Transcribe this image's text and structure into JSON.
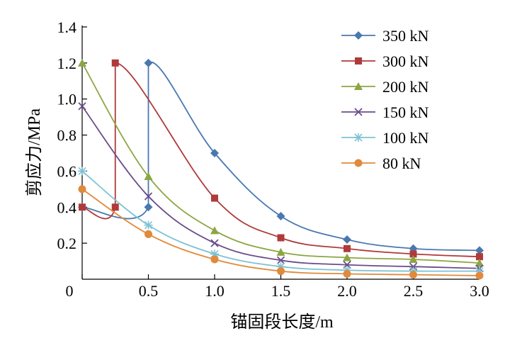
{
  "chart_data": {
    "type": "line",
    "xlabel": "锚固段长度/m",
    "ylabel": "剪应力/MPa",
    "xlim": [
      0,
      3.0
    ],
    "ylim": [
      0,
      1.4
    ],
    "x_ticks": [
      {
        "value": 0,
        "label": "0"
      },
      {
        "value": 0.5,
        "label": "0.5"
      },
      {
        "value": 1.0,
        "label": "1.0"
      },
      {
        "value": 1.5,
        "label": "1.5"
      },
      {
        "value": 2.0,
        "label": "2.0"
      },
      {
        "value": 2.5,
        "label": "2.5"
      },
      {
        "value": 3.0,
        "label": "3.0"
      }
    ],
    "y_ticks": [
      {
        "value": 0.2,
        "label": "0.2"
      },
      {
        "value": 0.4,
        "label": "0.4"
      },
      {
        "value": 0.6,
        "label": "0.6"
      },
      {
        "value": 0.8,
        "label": "0.8"
      },
      {
        "value": 1.0,
        "label": "1.0"
      },
      {
        "value": 1.2,
        "label": "1.2"
      },
      {
        "value": 1.4,
        "label": "1.4"
      }
    ],
    "grid": false,
    "legend_position": "top-right",
    "series": [
      {
        "name": "350 kN",
        "color": "#4a78b0",
        "marker": "diamond",
        "x": [
          0,
          0.5,
          0.5,
          1.0,
          1.5,
          2.0,
          2.5,
          3.0
        ],
        "y": [
          0.4,
          0.4,
          1.2,
          0.7,
          0.35,
          0.22,
          0.17,
          0.16
        ]
      },
      {
        "name": "300 kN",
        "color": "#b03a3a",
        "marker": "square",
        "x": [
          0,
          0.25,
          0.25,
          1.0,
          1.5,
          2.0,
          2.5,
          3.0
        ],
        "y": [
          0.4,
          0.4,
          1.2,
          0.45,
          0.23,
          0.17,
          0.14,
          0.125
        ]
      },
      {
        "name": "200 kN",
        "color": "#8ca642",
        "marker": "triangle",
        "x": [
          0,
          0.5,
          1.0,
          1.5,
          2.0,
          2.5,
          3.0
        ],
        "y": [
          1.2,
          0.57,
          0.27,
          0.15,
          0.12,
          0.11,
          0.09
        ]
      },
      {
        "name": "150 kN",
        "color": "#6b4c8a",
        "marker": "x",
        "x": [
          0,
          0.5,
          1.0,
          1.5,
          2.0,
          2.5,
          3.0
        ],
        "y": [
          0.96,
          0.46,
          0.2,
          0.105,
          0.08,
          0.07,
          0.06
        ]
      },
      {
        "name": "100 kN",
        "color": "#7ec2d4",
        "marker": "asterisk",
        "x": [
          0,
          0.5,
          1.0,
          1.5,
          2.0,
          2.5,
          3.0
        ],
        "y": [
          0.6,
          0.3,
          0.14,
          0.07,
          0.05,
          0.045,
          0.045
        ]
      },
      {
        "name": "80 kN",
        "color": "#e08a3c",
        "marker": "circle",
        "x": [
          0,
          0.5,
          1.0,
          1.5,
          2.0,
          2.5,
          3.0
        ],
        "y": [
          0.5,
          0.25,
          0.11,
          0.045,
          0.03,
          0.025,
          0.02
        ]
      }
    ]
  }
}
